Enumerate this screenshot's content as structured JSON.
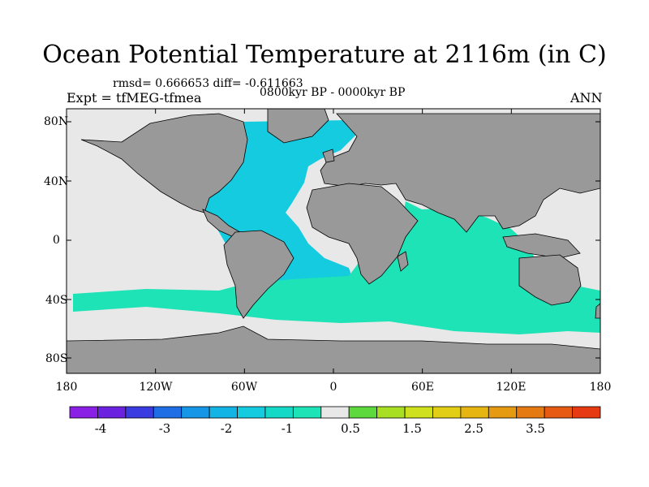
{
  "title": "Ocean Potential Temperature at 2116m (in C)",
  "stats_line": "rmsd= 0.666653 diff= -0.611663",
  "period_line": "0800kyr BP - 0000kyr BP",
  "experiment_line": "Expt = tfMEG-tfmea",
  "season": "ANN",
  "lat_labels": [
    "80N",
    "40N",
    "0",
    "40S",
    "80S"
  ],
  "lon_labels": [
    "180",
    "120W",
    "60W",
    "0",
    "60E",
    "120E",
    "180"
  ],
  "colorbar": {
    "colors": [
      "#8a1fe6",
      "#6a22e0",
      "#3a3be0",
      "#1f6ee6",
      "#1596e6",
      "#12b4e6",
      "#14cbe0",
      "#14d9c7",
      "#1de3b6",
      "#e8e8e8",
      "#5ed93d",
      "#a8df22",
      "#cfe01f",
      "#e2cf15",
      "#e6b512",
      "#e69a12",
      "#e67a12",
      "#e65a12",
      "#e63a12"
    ],
    "labels": [
      "-4",
      "-3",
      "-2",
      "-1",
      "0.5",
      "1.5",
      "2.5",
      "3.5"
    ]
  },
  "map_colors": {
    "land": "#999999",
    "no_change": "#e8e8e8",
    "atlantic_anomaly": "#14cbe0",
    "southern_anomaly": "#1de3b6",
    "positive_anomaly": "#a8df22"
  }
}
